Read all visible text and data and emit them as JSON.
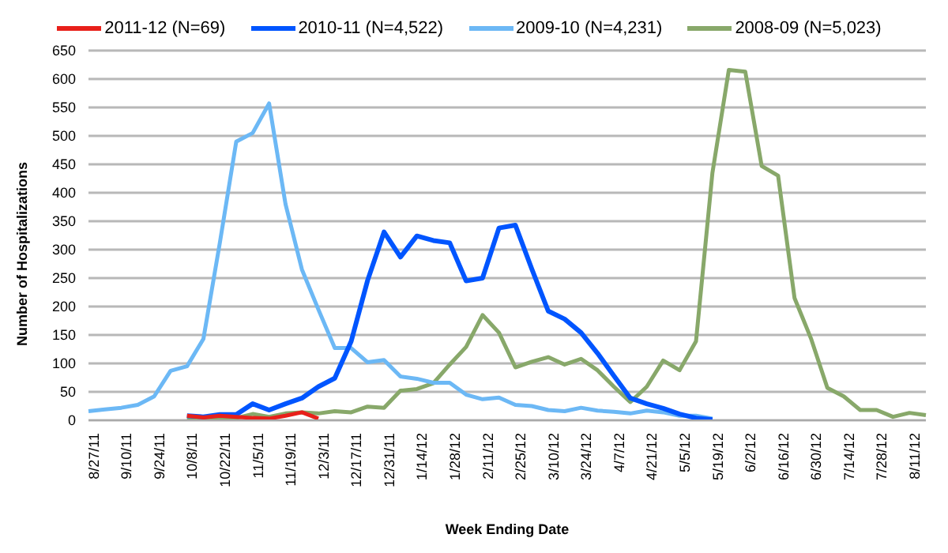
{
  "chart_data": {
    "type": "line",
    "xlabel": "Week Ending Date",
    "ylabel": "Number of Hospitalizations",
    "categories": [
      "8/27/11",
      null,
      "9/10/11",
      null,
      "9/24/11",
      null,
      "10/8/11",
      null,
      "10/22/11",
      null,
      "11/5/11",
      null,
      "11/19/11",
      null,
      "12/3/11",
      null,
      "12/17/11",
      null,
      "12/31/11",
      null,
      "1/14/12",
      null,
      "1/28/12",
      null,
      "2/11/12",
      null,
      "2/25/12",
      null,
      "3/10/12",
      null,
      "3/24/12",
      null,
      "4/7/12",
      null,
      "4/21/12",
      null,
      "5/5/12",
      null,
      "5/19/12",
      null,
      "6/2/12",
      null,
      "6/16/12",
      null,
      "6/30/12",
      null,
      "7/14/12",
      null,
      "7/28/12",
      null,
      "8/11/12",
      null
    ],
    "series": [
      {
        "name": "2011-12 (N=69)",
        "color": "#e8201a",
        "values": [
          null,
          null,
          null,
          null,
          null,
          null,
          8,
          5,
          8,
          6,
          4,
          3,
          8,
          14,
          3,
          null,
          null,
          null,
          null,
          null,
          null,
          null,
          null,
          null,
          null,
          null,
          null,
          null,
          null,
          null,
          null,
          null,
          null,
          null,
          null,
          null,
          null,
          null,
          null,
          null,
          null,
          null,
          null,
          null,
          null,
          null,
          null,
          null,
          null,
          null,
          null,
          null
        ]
      },
      {
        "name": "2010-11 (N=4,522)",
        "color": "#0055ff",
        "values": [
          null,
          null,
          null,
          null,
          null,
          null,
          8,
          6,
          10,
          10,
          29,
          18,
          29,
          39,
          59,
          74,
          139,
          246,
          331,
          287,
          324,
          316,
          312,
          245,
          250,
          338,
          343,
          266,
          192,
          178,
          154,
          118,
          78,
          39,
          29,
          21,
          11,
          4,
          1,
          null,
          null,
          null,
          null,
          null,
          null,
          null,
          null,
          null,
          null,
          null,
          null,
          null
        ]
      },
      {
        "name": "2009-10 (N=4,231)",
        "color": "#6cb8f5",
        "values": [
          16,
          19,
          22,
          27,
          42,
          87,
          95,
          143,
          312,
          490,
          505,
          557,
          380,
          265,
          195,
          127,
          127,
          102,
          106,
          77,
          73,
          66,
          66,
          45,
          37,
          40,
          27,
          25,
          18,
          16,
          22,
          17,
          15,
          12,
          17,
          14,
          8,
          8,
          3,
          null,
          null,
          null,
          null,
          null,
          null,
          null,
          null,
          null,
          null,
          null,
          null,
          null
        ]
      },
      {
        "name": "2008-09 (N=5,023)",
        "color": "#88a86a",
        "values": [
          null,
          null,
          null,
          null,
          null,
          null,
          2,
          2,
          4,
          4,
          11,
          6,
          12,
          14,
          12,
          16,
          14,
          24,
          22,
          52,
          55,
          65,
          98,
          129,
          185,
          154,
          93,
          103,
          111,
          98,
          108,
          88,
          59,
          32,
          59,
          105,
          88,
          139,
          435,
          616,
          613,
          447,
          430,
          215,
          144,
          57,
          42,
          18,
          18,
          6,
          13,
          9
        ]
      }
    ],
    "ylim": [
      0,
      650
    ],
    "yticks": [
      0,
      50,
      100,
      150,
      200,
      250,
      300,
      350,
      400,
      450,
      500,
      550,
      600,
      650
    ],
    "grid": "y",
    "legend": "top",
    "marker": "none",
    "line_style": "solid"
  }
}
